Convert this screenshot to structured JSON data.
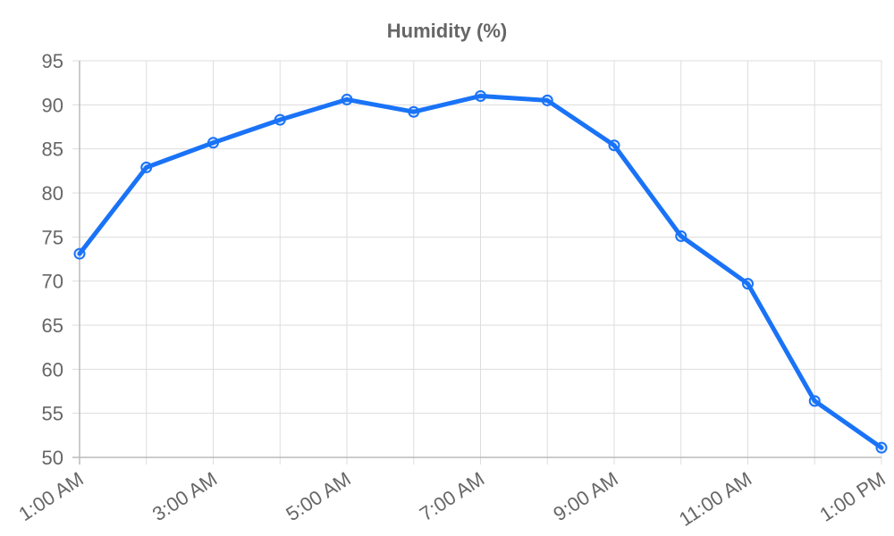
{
  "chart_data": {
    "type": "line",
    "title": "Humidity (%)",
    "xlabel": "",
    "ylabel": "",
    "categories": [
      "1:00 AM",
      "2:00 AM",
      "3:00 AM",
      "4:00 AM",
      "5:00 AM",
      "6:00 AM",
      "7:00 AM",
      "8:00 AM",
      "9:00 AM",
      "10:00 AM",
      "11:00 AM",
      "12:00 PM",
      "1:00 PM"
    ],
    "x_tick_labels_shown": [
      "1:00 AM",
      "3:00 AM",
      "5:00 AM",
      "7:00 AM",
      "9:00 AM",
      "11:00 AM",
      "1:00 PM"
    ],
    "y_ticks": [
      50,
      55,
      60,
      65,
      70,
      75,
      80,
      85,
      90,
      95
    ],
    "ylim": [
      50,
      95
    ],
    "grid": true,
    "legend": "none",
    "series": [
      {
        "values": [
          73.1,
          82.9,
          85.7,
          88.3,
          90.6,
          89.2,
          91.0,
          90.5,
          85.4,
          75.1,
          69.7,
          56.4,
          51.1
        ],
        "color": "#1a73f7"
      }
    ],
    "colors": {
      "line": "#1a73f7",
      "grid": "#dddddd",
      "axis": "#bbbbbb",
      "text": "#666666"
    }
  }
}
